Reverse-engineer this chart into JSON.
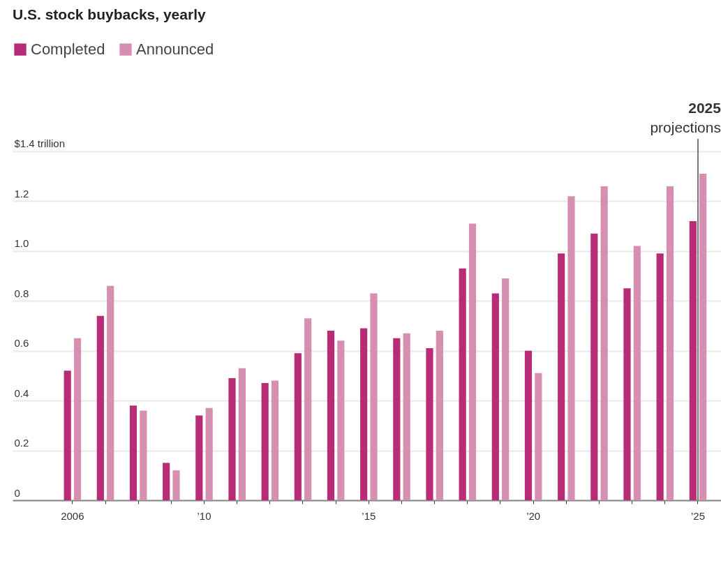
{
  "chart_data": {
    "type": "bar",
    "title": "U.S. stock buybacks, yearly",
    "categories": [
      "2006",
      null,
      null,
      null,
      "’10",
      null,
      null,
      null,
      null,
      "’15",
      null,
      null,
      null,
      null,
      "’20",
      null,
      null,
      null,
      null,
      "’25"
    ],
    "series": [
      {
        "name": "Completed",
        "color": "#b82b76",
        "values": [
          0.52,
          0.74,
          0.38,
          0.15,
          0.34,
          0.49,
          0.47,
          0.59,
          0.68,
          0.69,
          0.65,
          0.61,
          0.93,
          0.83,
          0.6,
          0.99,
          1.07,
          0.85,
          0.99,
          1.12
        ]
      },
      {
        "name": "Announced",
        "color": "#d68fb1",
        "values": [
          0.65,
          0.86,
          0.36,
          0.12,
          0.37,
          0.53,
          0.48,
          0.73,
          0.64,
          0.83,
          0.67,
          0.68,
          1.11,
          0.89,
          0.51,
          1.22,
          1.26,
          1.02,
          1.26,
          1.31
        ]
      }
    ],
    "ylim": [
      0,
      1.45
    ],
    "yticks": [
      0,
      0.2,
      0.4,
      0.6,
      0.8,
      {
        "value": 1,
        "label": "1.0"
      },
      1.2,
      {
        "value": 1.4,
        "label": "$1.4 trillion"
      }
    ],
    "ref_lines": [
      {
        "axis": "x",
        "value": "’25",
        "label": "2025\nprojections",
        "color": "#777777"
      }
    ],
    "grid": "y",
    "legend": "top left"
  }
}
